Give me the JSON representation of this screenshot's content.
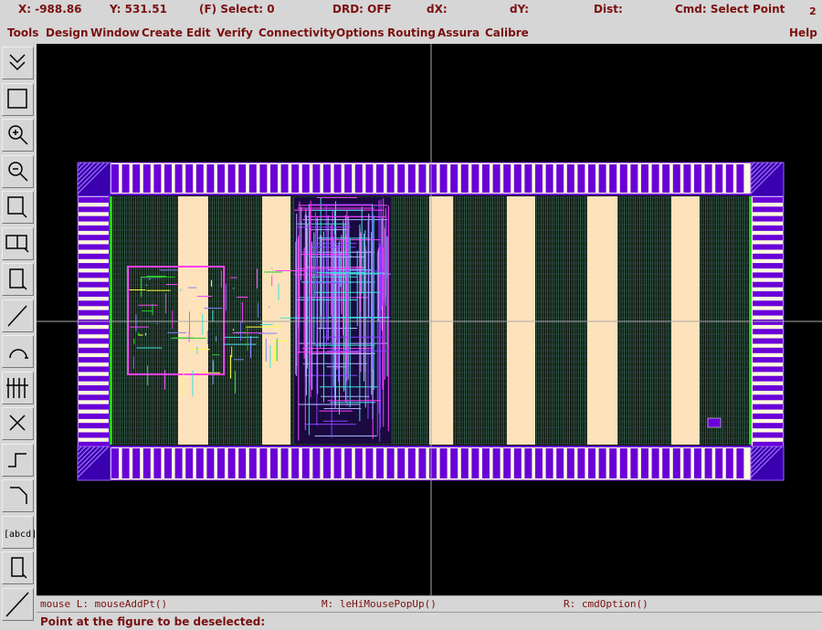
{
  "status_bar": {
    "x": "X: -988.86",
    "y": "Y: 531.51",
    "select": "(F) Select: 0",
    "drd": "DRD: OFF",
    "dx": "dX:",
    "dy": "dY:",
    "dist": "Dist:",
    "cmd": "Cmd: Select Point",
    "window": "2"
  },
  "menu": [
    "Tools",
    "Design",
    "Window",
    "Create",
    "Edit",
    "Verify",
    "Connectivity",
    "Options",
    "Routing",
    "Assura",
    "Calibre",
    "Help"
  ],
  "toolbar": {
    "label_tool": "[abcd]"
  },
  "mouse_bar": {
    "left": "mouse L: mouseAddPt()",
    "middle": "M: leHiMousePopUp()",
    "right": "R: cmdOption()"
  },
  "prompt": "Point at the figure to be deselected:"
}
